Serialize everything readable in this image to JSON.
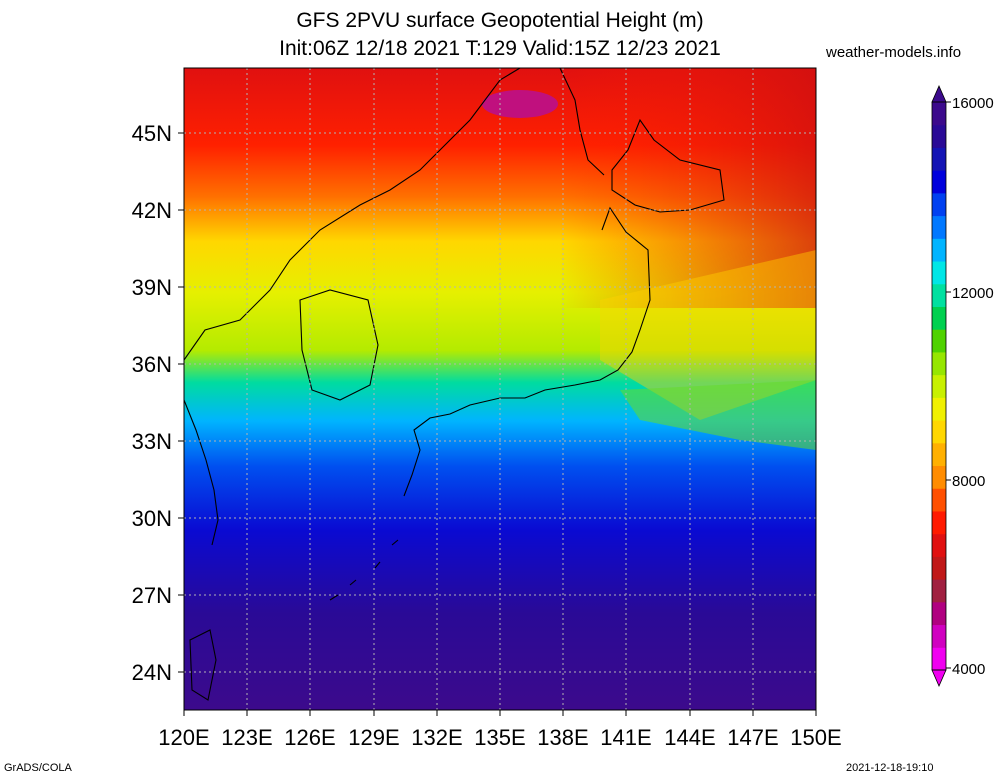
{
  "header": {
    "title": "GFS 2PVU surface Geopotential Height (m)",
    "subtitle": "Init:06Z 12/18 2021 T:129 Valid:15Z 12/23 2021",
    "credit": "weather-models.info"
  },
  "footer": {
    "left": "GrADS/COLA",
    "right": "2021-12-18-19:10"
  },
  "map": {
    "lon_labels": [
      "120E",
      "123E",
      "126E",
      "129E",
      "132E",
      "135E",
      "138E",
      "141E",
      "144E",
      "147E",
      "150E"
    ],
    "lat_labels": [
      "45N",
      "42N",
      "39N",
      "36N",
      "33N",
      "30N",
      "27N",
      "24N"
    ],
    "lon_range": [
      120,
      150
    ],
    "lat_range": [
      22.5,
      47.5
    ]
  },
  "colorbar": {
    "labels": [
      "16000",
      "12000",
      "8000",
      "4000"
    ],
    "levels": [
      4000,
      16000
    ],
    "colors": [
      "#f000f0",
      "#d000c0",
      "#b00080",
      "#a02040",
      "#c01818",
      "#e01010",
      "#ff1a00",
      "#ff5000",
      "#ff8c00",
      "#ffb000",
      "#ffd700",
      "#f0f000",
      "#c8f000",
      "#96e600",
      "#50d200",
      "#00d050",
      "#00e0a0",
      "#00e6e6",
      "#00b4ff",
      "#0078ff",
      "#0040f0",
      "#0000dc",
      "#1414b4",
      "#2a0a96",
      "#3c0a8c"
    ]
  }
}
